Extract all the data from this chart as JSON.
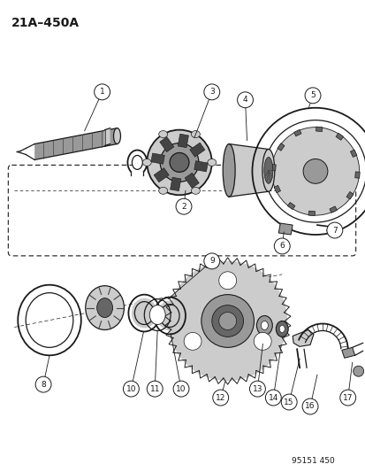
{
  "title": "21A–450A",
  "bg_color": "#ffffff",
  "line_color": "#1a1a1a",
  "gray1": "#cccccc",
  "gray2": "#999999",
  "gray3": "#666666",
  "gray4": "#444444",
  "watermark": "95151 450",
  "fig_width": 4.14,
  "fig_height": 5.33,
  "dpi": 100
}
